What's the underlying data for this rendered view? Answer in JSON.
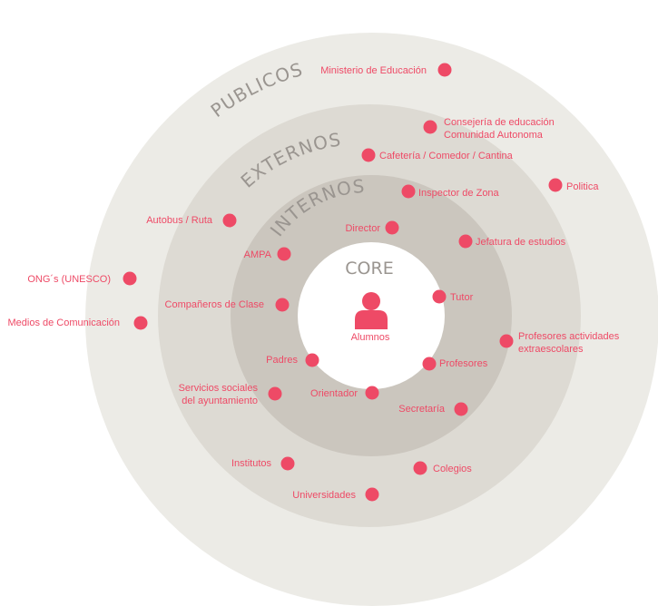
{
  "colors": {
    "ring_publicos": "#ecebe6",
    "ring_externos": "#dddad3",
    "ring_internos": "#cbc6be",
    "core": "#ffffff",
    "accent": "#ee4a66",
    "ring_text": "#9a9590",
    "core_text": "#9a9590"
  },
  "rings": {
    "publicos": "PUBLICOS",
    "externos": "EXTERNOS",
    "internos": "INTERNOS",
    "core": "CORE"
  },
  "center": {
    "icon": "user-icon",
    "label": "Alumnos"
  },
  "stakeholders": {
    "ministerio": "Ministerio de Educación",
    "consejeria_1": "Consejería de educación",
    "consejeria_2": "Comunidad Autonoma",
    "cafeteria": "Cafetería / Comedor / Cantina",
    "politica": "Politica",
    "inspector": "Inspector de Zona",
    "autobus": "Autobus / Ruta",
    "director": "Director",
    "jefatura": "Jefatura de estudios",
    "ampa": "AMPA",
    "ong": "ONG´s (UNESCO)",
    "companeros": "Compañeros de Clase",
    "tutor": "Tutor",
    "medios": "Medios de Comunicación",
    "profesores_act_1": "Profesores actividades",
    "profesores_act_2": "extraescolares",
    "padres": "Padres",
    "profesores": "Profesores",
    "servicios_1": "Servicios sociales",
    "servicios_2": "del ayuntamiento",
    "orientador": "Orientador",
    "secretaria": "Secretaría",
    "institutos": "Institutos",
    "colegios": "Colegios",
    "universidades": "Universidades"
  }
}
